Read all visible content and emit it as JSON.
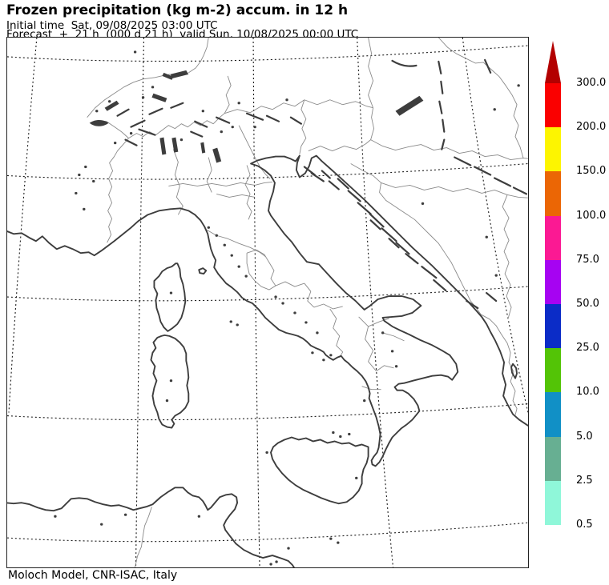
{
  "header": {
    "title": "Frozen precipitation (kg m-2) accum. in 12 h",
    "initial_time_line": "Initial time  Sat, 09/08/2025 03:00 UTC",
    "forecast_line": "Forecast  +  21 h  (000 d 21 h)  valid Sun, 10/08/2025 00:00 UTC"
  },
  "footer": {
    "credit": "Moloch Model, CNR-ISAC, Italy"
  },
  "colorbar": {
    "arrow_color": "#b30000",
    "bottom_label": "0.5",
    "segments": [
      {
        "top_label": "300.0",
        "color": "#fa0000"
      },
      {
        "top_label": "200.0",
        "color": "#fdf500"
      },
      {
        "top_label": "150.0",
        "color": "#eb6605"
      },
      {
        "top_label": "100.0",
        "color": "#fb1993"
      },
      {
        "top_label": "75.0",
        "color": "#a603f2"
      },
      {
        "top_label": "50.0",
        "color": "#0b2cc7"
      },
      {
        "top_label": "25.0",
        "color": "#53c406"
      },
      {
        "top_label": "10.0",
        "color": "#1190c6"
      },
      {
        "top_label": "5.0",
        "color": "#67af92"
      },
      {
        "top_label": "2.5",
        "color": "#8ff7d9"
      }
    ]
  },
  "map": {
    "coast_color": "#3d3d3d",
    "border_color": "#8a8a8a",
    "graticule_color": "#1b1b1b"
  }
}
